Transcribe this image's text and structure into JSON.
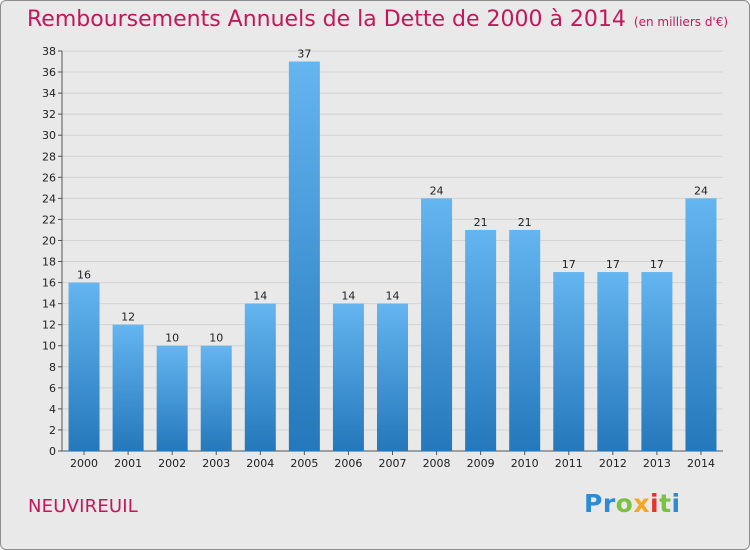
{
  "title": "Remboursements Annuels de la Dette de 2000 à 2014",
  "unit": "(en milliers d'€)",
  "town": "NEUVIREUIL",
  "logo": {
    "parts": [
      "Pr",
      "o",
      "x",
      "i",
      "t",
      "i"
    ]
  },
  "colors": {
    "title": "#c2185b",
    "bar_top": "#64b5f0",
    "bar_bottom": "#2478bb",
    "background": "#e9e9e9"
  },
  "chart_data": {
    "type": "bar",
    "categories": [
      "2000",
      "2001",
      "2002",
      "2003",
      "2004",
      "2005",
      "2006",
      "2007",
      "2008",
      "2009",
      "2010",
      "2011",
      "2012",
      "2013",
      "2014"
    ],
    "values": [
      16,
      12,
      10,
      10,
      14,
      37,
      14,
      14,
      24,
      21,
      21,
      17,
      17,
      17,
      24
    ],
    "data_labels": [
      "16",
      "12",
      "10",
      "10",
      "14",
      "37",
      "14",
      "14",
      "24",
      "21",
      "21",
      "17",
      "17",
      "17",
      "24"
    ],
    "ylim": [
      0,
      38
    ],
    "yticks": [
      0,
      2,
      4,
      6,
      8,
      10,
      12,
      14,
      16,
      18,
      20,
      22,
      24,
      26,
      28,
      30,
      32,
      34,
      36,
      38
    ],
    "grid": true,
    "legend": "none"
  }
}
